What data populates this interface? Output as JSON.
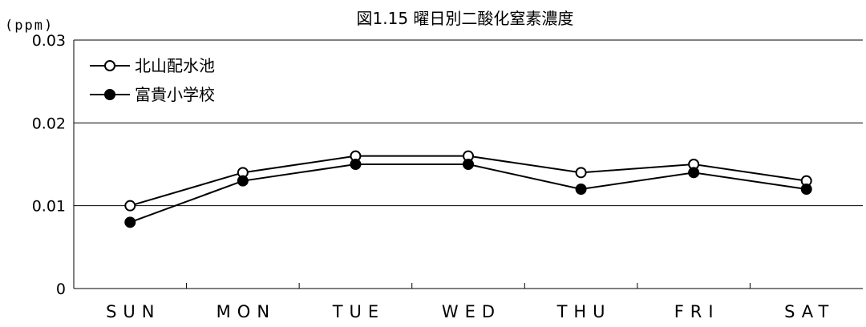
{
  "chart_data": {
    "type": "line",
    "title": "図1.15 曜日別二酸化窒素濃度",
    "ylabel": "(ppm)",
    "xlabel": "",
    "categories": [
      "SUN",
      "MON",
      "TUE",
      "WED",
      "THU",
      "FRI",
      "SAT"
    ],
    "ylim": [
      0,
      0.03
    ],
    "yticks": [
      "0",
      "0.01",
      "0.02",
      "0.03"
    ],
    "grid": true,
    "legend_position": "top-left",
    "series": [
      {
        "name": "北山配水池",
        "marker": "open-circle",
        "values": [
          0.01,
          0.014,
          0.016,
          0.016,
          0.014,
          0.015,
          0.013
        ]
      },
      {
        "name": "富貴小学校",
        "marker": "filled-circle",
        "values": [
          0.008,
          0.013,
          0.015,
          0.015,
          0.012,
          0.014,
          0.012
        ]
      }
    ],
    "colors": {
      "line": "#000000",
      "grid": "#000000",
      "background": "#ffffff"
    }
  }
}
